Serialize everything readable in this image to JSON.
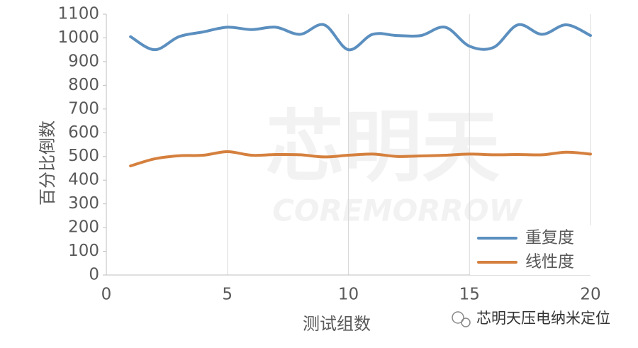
{
  "chart_data": {
    "type": "line",
    "x_label": "测试组数",
    "y_label": "百分比倒数",
    "x": [
      1,
      2,
      3,
      4,
      5,
      6,
      7,
      8,
      9,
      10,
      11,
      12,
      13,
      14,
      15,
      16,
      17,
      18,
      19,
      20
    ],
    "series": [
      {
        "name": "重复度",
        "color": "#5b8fbf",
        "values": [
          1005,
          950,
          1005,
          1025,
          1045,
          1035,
          1045,
          1015,
          1055,
          950,
          1015,
          1010,
          1010,
          1045,
          965,
          960,
          1055,
          1015,
          1055,
          1010
        ]
      },
      {
        "name": "线性度",
        "color": "#d5803e",
        "values": [
          460,
          490,
          503,
          505,
          520,
          505,
          508,
          507,
          498,
          505,
          510,
          500,
          502,
          505,
          510,
          507,
          508,
          507,
          518,
          510
        ]
      }
    ],
    "xlim": [
      0,
      20
    ],
    "xticks": [
      0,
      5,
      10,
      15,
      20
    ],
    "ylim": [
      0,
      1100
    ],
    "yticks": [
      0,
      100,
      200,
      300,
      400,
      500,
      600,
      700,
      800,
      900,
      1000,
      1100
    ],
    "grid": "x",
    "legend": "bottom-right",
    "smooth": true,
    "watermark": [
      "芯明天",
      "COREMORROW"
    ],
    "annotation": "芯明天压电纳米定位"
  }
}
